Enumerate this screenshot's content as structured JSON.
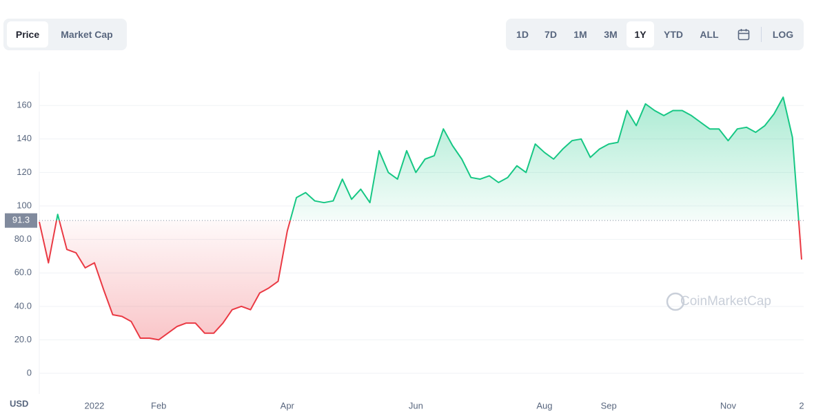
{
  "ui": {
    "tabs": [
      "Price",
      "Market Cap"
    ],
    "ranges": [
      "1D",
      "7D",
      "1M",
      "3M",
      "1Y",
      "YTD",
      "ALL"
    ],
    "log": "LOG"
  },
  "chart_data": {
    "type": "line",
    "watermark": "CoinMarketCap",
    "y_unit": "USD",
    "categories": [
      null,
      null,
      null,
      null,
      null,
      null,
      "2022",
      null,
      null,
      null,
      null,
      null,
      null,
      "Feb",
      null,
      null,
      null,
      null,
      null,
      null,
      null,
      null,
      null,
      null,
      null,
      null,
      null,
      "Apr",
      null,
      null,
      null,
      null,
      null,
      null,
      null,
      null,
      null,
      null,
      null,
      null,
      null,
      "Jun",
      null,
      null,
      null,
      null,
      null,
      null,
      null,
      null,
      null,
      null,
      null,
      null,
      null,
      "Aug",
      null,
      null,
      null,
      null,
      null,
      null,
      "Sep",
      null,
      null,
      null,
      null,
      null,
      null,
      null,
      null,
      null,
      null,
      null,
      null,
      "Nov",
      null,
      null,
      null,
      null,
      null,
      null,
      null,
      "2"
    ],
    "values": [
      90.5,
      66,
      95,
      74,
      72,
      63,
      66,
      50,
      35,
      34,
      31,
      21,
      21,
      20,
      24,
      28,
      30,
      30,
      24,
      24,
      30,
      38,
      40,
      38,
      48,
      51,
      55,
      85,
      105,
      108,
      103,
      102,
      103,
      116,
      104,
      110,
      102,
      133,
      120,
      116,
      133,
      120,
      128,
      130,
      146,
      136,
      128,
      117,
      116,
      118,
      114,
      117,
      124,
      120,
      137,
      132,
      128,
      134,
      139,
      140,
      129,
      134,
      137,
      138,
      157,
      148,
      161,
      157,
      154,
      157,
      157,
      154,
      150,
      146,
      146,
      139,
      146,
      147,
      144,
      148,
      155,
      165,
      141,
      68
    ],
    "baseline": 91.3,
    "color_up": "#16c784",
    "color_down": "#ea3943",
    "ylim": [
      -12,
      180
    ],
    "yticks": [
      0,
      {
        "value": 20,
        "label": "20.0"
      },
      {
        "value": 40,
        "label": "40.0"
      },
      {
        "value": 60,
        "label": "60.0"
      },
      {
        "value": 80,
        "label": "80.0"
      },
      100,
      120,
      140,
      160
    ],
    "grid": true
  }
}
